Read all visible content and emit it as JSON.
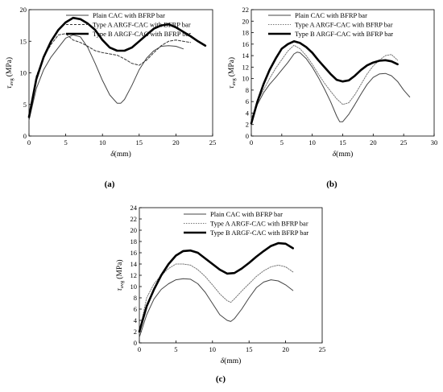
{
  "figure": {
    "panel_labels": [
      "(a)",
      "(b)",
      "(c)"
    ]
  },
  "chart_data": [
    {
      "type": "line",
      "panel": "(a)",
      "xlabel_symbol": "δ",
      "xlabel_unit": "(mm)",
      "ylabel_symbol": "τ",
      "ylabel_sub": "avg",
      "ylabel_unit": "(MPa)",
      "xlim": [
        0,
        25
      ],
      "ylim": [
        0,
        20
      ],
      "x_ticks": [
        0,
        5,
        10,
        15,
        20,
        25
      ],
      "y_ticks": [
        0,
        5,
        10,
        15,
        20
      ],
      "grid": false,
      "legend_position": "top-right",
      "series": [
        {
          "name": "Plain CAC with BFRP bar",
          "style": "solid-thin",
          "x": [
            0,
            1,
            2,
            3,
            4,
            5,
            6,
            7,
            8,
            9,
            10,
            11,
            12,
            12.5,
            13,
            14,
            15,
            16,
            17,
            18,
            19,
            20,
            21
          ],
          "y": [
            2.5,
            7.5,
            10.5,
            12.5,
            14,
            15.5,
            16,
            15.7,
            14,
            11.5,
            8.8,
            6.5,
            5.2,
            5.2,
            5.8,
            8,
            10.5,
            12.3,
            13.5,
            14.2,
            14.3,
            14.2,
            13.8
          ]
        },
        {
          "name": "Type A ARGF-CAC with BFRP bar",
          "style": "dashed",
          "x": [
            0,
            1,
            2,
            3,
            4,
            5,
            6,
            7,
            8,
            9,
            10,
            11,
            12,
            13,
            14,
            15,
            16,
            17,
            18,
            19,
            20,
            21,
            22
          ],
          "y": [
            3,
            9.5,
            12.5,
            14.5,
            16,
            16.2,
            15.2,
            14.8,
            14.2,
            13.5,
            13.2,
            13,
            12.8,
            12.2,
            11.5,
            11.2,
            12,
            13.2,
            14.3,
            15,
            15.2,
            15,
            14.8
          ]
        },
        {
          "name": "Type B ARGF-CAC with BFRP bar",
          "style": "solid-thick",
          "x": [
            0,
            1,
            2,
            3,
            4,
            5,
            6,
            7,
            8,
            9,
            10,
            11,
            12,
            13,
            14,
            15,
            16,
            17,
            18,
            19,
            20,
            21,
            22,
            23,
            24
          ],
          "y": [
            3,
            9,
            12.5,
            15,
            16.8,
            18,
            18.7,
            18.5,
            17.8,
            16.8,
            15.2,
            14,
            13.5,
            13.5,
            14,
            15,
            16,
            17,
            17.5,
            17.7,
            17.2,
            16.5,
            15.8,
            15,
            14.3
          ]
        }
      ]
    },
    {
      "type": "line",
      "panel": "(b)",
      "xlabel_symbol": "δ",
      "xlabel_unit": "(mm)",
      "ylabel_symbol": "τ",
      "ylabel_sub": "avg",
      "ylabel_unit": "(MPa)",
      "xlim": [
        0,
        30
      ],
      "ylim": [
        0,
        22
      ],
      "x_ticks": [
        0,
        5,
        10,
        15,
        20,
        25,
        30
      ],
      "y_ticks": [
        0,
        2,
        4,
        6,
        8,
        10,
        12,
        14,
        16,
        18,
        20,
        22
      ],
      "grid": false,
      "legend_position": "top-right",
      "series": [
        {
          "name": "Plain CAC with BFRP bar",
          "style": "solid-thin",
          "x": [
            0,
            1,
            2,
            3,
            4,
            5,
            6,
            7,
            7.5,
            8,
            9,
            10,
            11,
            12,
            13,
            14,
            14.5,
            15,
            16,
            17,
            18,
            19,
            20,
            21,
            22,
            23,
            24,
            25,
            26
          ],
          "y": [
            2.5,
            5.5,
            7.5,
            9,
            10.2,
            11.5,
            12.8,
            14.3,
            14.6,
            14.5,
            13.5,
            12,
            10.2,
            8.2,
            6,
            3.5,
            2.5,
            2.5,
            3.8,
            5.5,
            7.3,
            9,
            10.2,
            10.8,
            10.9,
            10.5,
            9.5,
            8,
            6.8
          ]
        },
        {
          "name": "Type A ARGF-CAC with BFRP bar",
          "style": "dotted",
          "x": [
            0,
            1,
            2,
            3,
            4,
            5,
            6,
            7,
            8,
            9,
            10,
            11,
            12,
            13,
            14,
            15,
            16,
            17,
            18,
            19,
            20,
            21,
            22,
            23,
            24
          ],
          "y": [
            3,
            6,
            8,
            10,
            11.8,
            13.3,
            14.8,
            15.8,
            15.2,
            14,
            12.5,
            10.8,
            9.2,
            7.8,
            6.5,
            5.5,
            5.8,
            7.2,
            9,
            10.8,
            12.2,
            13.2,
            14,
            14.2,
            13.2
          ]
        },
        {
          "name": "Type B ARGF-CAC with BFRP bar",
          "style": "solid-thick",
          "x": [
            0,
            1,
            2,
            3,
            4,
            5,
            6,
            7,
            8,
            9,
            10,
            11,
            12,
            13,
            14,
            15,
            16,
            17,
            18,
            19,
            20,
            21,
            22,
            23,
            24
          ],
          "y": [
            2.2,
            6,
            9,
            11.5,
            13.5,
            15.2,
            16,
            16.5,
            16.2,
            15.5,
            14.5,
            13.2,
            12,
            10.8,
            9.8,
            9.5,
            9.7,
            10.5,
            11.5,
            12.3,
            12.8,
            13.1,
            13.2,
            13,
            12.5
          ]
        }
      ]
    },
    {
      "type": "line",
      "panel": "(c)",
      "xlabel_symbol": "δ",
      "xlabel_unit": "(mm)",
      "ylabel_symbol": "τ",
      "ylabel_sub": "avg",
      "ylabel_unit": "(MPa)",
      "xlim": [
        0,
        25
      ],
      "ylim": [
        0,
        24
      ],
      "x_ticks": [
        0,
        5,
        10,
        15,
        20,
        25
      ],
      "y_ticks": [
        0,
        2,
        4,
        6,
        8,
        10,
        12,
        14,
        16,
        18,
        20,
        22,
        24
      ],
      "grid": false,
      "legend_position": "top-right",
      "series": [
        {
          "name": "Plain CAC with BFRP bar",
          "style": "solid-thin",
          "x": [
            0,
            1,
            2,
            3,
            4,
            5,
            6,
            7,
            8,
            9,
            10,
            11,
            12,
            12.5,
            13,
            14,
            15,
            16,
            17,
            18,
            19,
            20,
            21
          ],
          "y": [
            1,
            5,
            7.8,
            9.5,
            10.5,
            11.2,
            11.4,
            11.3,
            10.5,
            9,
            7,
            5,
            4,
            3.8,
            4.3,
            6,
            8,
            9.8,
            10.8,
            11.2,
            11,
            10.3,
            9.3
          ]
        },
        {
          "name": "Type A ARGF-CAC with BFRP bar",
          "style": "dotted",
          "x": [
            0,
            1,
            2,
            3,
            4,
            5,
            6,
            7,
            8,
            9,
            10,
            11,
            12,
            12.5,
            13,
            14,
            15,
            16,
            17,
            18,
            19,
            20,
            21
          ],
          "y": [
            2,
            8,
            10.5,
            12,
            13.2,
            14,
            14,
            13.8,
            13,
            11.8,
            10.3,
            8.7,
            7.5,
            7.2,
            7.8,
            9.2,
            10.5,
            11.8,
            12.8,
            13.5,
            13.8,
            13.5,
            12.6
          ]
        },
        {
          "name": "Type B ARGF-CAC with BFRP bar",
          "style": "solid-thick",
          "x": [
            0,
            1,
            2,
            3,
            4,
            5,
            6,
            7,
            8,
            9,
            10,
            11,
            12,
            13,
            14,
            15,
            16,
            17,
            18,
            19,
            20,
            21
          ],
          "y": [
            2,
            6.5,
            9.5,
            12,
            14,
            15.5,
            16.3,
            16.4,
            16,
            15,
            14,
            13,
            12.3,
            12.4,
            13.2,
            14.2,
            15.3,
            16.3,
            17.2,
            17.7,
            17.6,
            16.8
          ]
        }
      ]
    }
  ]
}
